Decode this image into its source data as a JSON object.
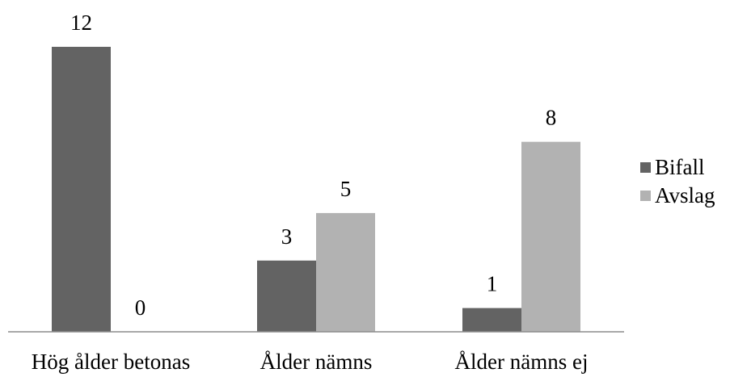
{
  "chart_data": {
    "type": "bar",
    "title": "",
    "xlabel": "",
    "ylabel": "",
    "categories": [
      "Hög ålder betonas",
      "Ålder nämns",
      "Ålder nämns ej"
    ],
    "series": [
      {
        "name": "Bifall",
        "values": [
          12,
          3,
          1
        ],
        "color": "#636363"
      },
      {
        "name": "Avslag",
        "values": [
          0,
          5,
          8
        ],
        "color": "#b2b2b2"
      }
    ],
    "ylim": [
      0,
      12
    ],
    "grid": false,
    "data_labels": true,
    "legend_position": "right"
  }
}
